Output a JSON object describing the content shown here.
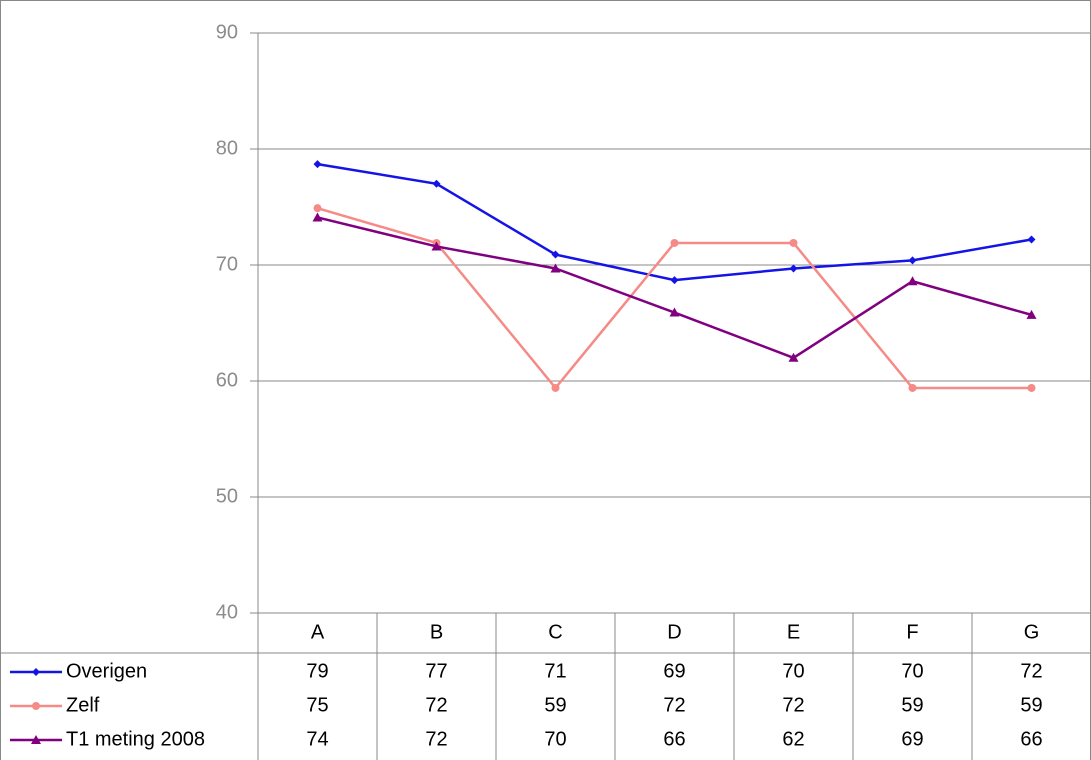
{
  "chart_data": {
    "type": "line",
    "categories": [
      "A",
      "B",
      "C",
      "D",
      "E",
      "F",
      "G"
    ],
    "series": [
      {
        "name": "Overigen",
        "color": "#1414e6",
        "marker": "diamond",
        "values": [
          78.7,
          77.0,
          70.9,
          68.7,
          69.7,
          70.4,
          72.2
        ],
        "value_labels": [
          "79",
          "77",
          "71",
          "69",
          "70",
          "70",
          "72"
        ]
      },
      {
        "name": "Zelf",
        "color": "#f58a86",
        "marker": "circle",
        "values": [
          74.9,
          71.9,
          59.4,
          71.9,
          71.9,
          59.4,
          59.4
        ],
        "value_labels": [
          "75",
          "72",
          "59",
          "72",
          "72",
          "59",
          "59"
        ]
      },
      {
        "name": "T1 meting 2008",
        "color": "#800080",
        "marker": "triangle",
        "values": [
          74.1,
          71.6,
          69.7,
          65.9,
          62.0,
          68.6,
          65.7
        ],
        "value_labels": [
          "74",
          "72",
          "70",
          "66",
          "62",
          "69",
          "66"
        ]
      }
    ],
    "ylim": [
      40,
      90
    ],
    "yticks": [
      40,
      50,
      60,
      70,
      80,
      90
    ],
    "grid": true
  }
}
